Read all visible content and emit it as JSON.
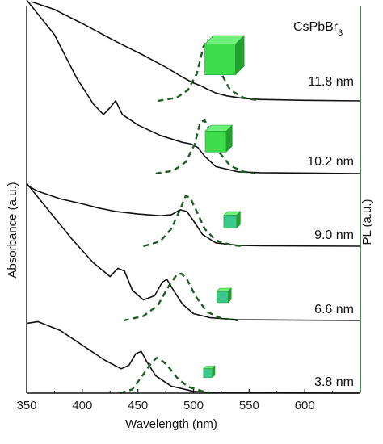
{
  "chart_data": {
    "type": "line",
    "title": "CsPbBr3",
    "title_parts": {
      "base": "CsPbBr",
      "sub": "3"
    },
    "xlabel": "Wavelength (nm)",
    "ylabel_left": "Absorbance  (a.u.)",
    "ylabel_right": "PL  (a.u.)",
    "xlim": [
      350,
      650
    ],
    "x_ticks": [
      350,
      400,
      450,
      500,
      550,
      600
    ],
    "colors": {
      "absorbance": "#111111",
      "pl": "#1e5e24",
      "right_axis": "#1e6b2a",
      "cube_sizes_large": "#3cdc4a",
      "cube_sizes_small": "#3cc88a"
    },
    "series": [
      {
        "size_label": "11.8 nm",
        "absorbance": {
          "x": [
            354,
            375,
            400,
            430,
            455,
            475,
            490,
            500,
            507,
            512,
            520,
            530,
            545,
            560,
            600,
            650
          ],
          "y": [
            1.0,
            0.92,
            0.78,
            0.6,
            0.46,
            0.34,
            0.24,
            0.18,
            0.15,
            0.12,
            0.08,
            0.05,
            0.025,
            0.015,
            0.006,
            0.0
          ]
        },
        "pl": {
          "x": [
            468,
            485,
            495,
            503,
            509,
            513,
            518,
            525,
            533,
            545,
            560
          ],
          "y": [
            0.0,
            0.03,
            0.1,
            0.25,
            0.5,
            0.56,
            0.45,
            0.25,
            0.1,
            0.03,
            0.0
          ]
        }
      },
      {
        "size_label": "10.2 nm",
        "absorbance": {
          "x": [
            350,
            375,
            395,
            410,
            419,
            425,
            430,
            436,
            450,
            470,
            490,
            498,
            504,
            510,
            520,
            540,
            560,
            650
          ],
          "y": [
            1.0,
            0.8,
            0.55,
            0.4,
            0.34,
            0.38,
            0.42,
            0.34,
            0.28,
            0.22,
            0.18,
            0.17,
            0.15,
            0.1,
            0.04,
            0.01,
            0.005,
            0.0
          ]
        },
        "pl": {
          "x": [
            466,
            482,
            493,
            501,
            506,
            510,
            516,
            523,
            533,
            545,
            555
          ],
          "y": [
            0.0,
            0.03,
            0.12,
            0.3,
            0.53,
            0.55,
            0.42,
            0.22,
            0.08,
            0.02,
            0.0
          ]
        }
      },
      {
        "size_label": "9.0 nm",
        "absorbance": {
          "x": [
            350,
            360,
            380,
            400,
            415,
            430,
            450,
            470,
            480,
            488,
            494,
            500,
            508,
            520,
            540,
            560,
            650
          ],
          "y": [
            0.72,
            0.65,
            0.56,
            0.5,
            0.45,
            0.41,
            0.38,
            0.36,
            0.37,
            0.43,
            0.41,
            0.3,
            0.14,
            0.04,
            0.01,
            0.005,
            0.0
          ]
        },
        "pl": {
          "x": [
            455,
            470,
            480,
            488,
            493,
            497,
            502,
            510,
            520,
            535,
            545
          ],
          "y": [
            0.0,
            0.05,
            0.18,
            0.38,
            0.52,
            0.5,
            0.38,
            0.18,
            0.06,
            0.01,
            0.0
          ]
        }
      },
      {
        "size_label": "6.6 nm",
        "absorbance": {
          "x": [
            350,
            370,
            390,
            410,
            425,
            432,
            438,
            445,
            455,
            465,
            472,
            476,
            482,
            490,
            500,
            515,
            540,
            650
          ],
          "y": [
            1.0,
            0.8,
            0.6,
            0.42,
            0.32,
            0.38,
            0.36,
            0.22,
            0.15,
            0.18,
            0.28,
            0.3,
            0.22,
            0.12,
            0.05,
            0.02,
            0.005,
            0.0
          ]
        },
        "pl": {
          "x": [
            437,
            455,
            468,
            478,
            485,
            489,
            494,
            502,
            512,
            525,
            540
          ],
          "y": [
            0.0,
            0.04,
            0.14,
            0.32,
            0.42,
            0.43,
            0.38,
            0.22,
            0.08,
            0.02,
            0.0
          ]
        }
      },
      {
        "size_label": "3.8 nm",
        "absorbance": {
          "x": [
            350,
            360,
            380,
            400,
            420,
            435,
            442,
            448,
            453,
            458,
            466,
            480,
            500,
            520,
            650
          ],
          "y": [
            0.8,
            0.82,
            0.72,
            0.55,
            0.38,
            0.28,
            0.32,
            0.45,
            0.48,
            0.36,
            0.2,
            0.08,
            0.02,
            0.005,
            0.0
          ]
        },
        "pl": {
          "x": [
            434,
            445,
            455,
            462,
            467,
            470,
            476,
            485,
            495,
            510,
            520
          ],
          "y": [
            0.0,
            0.06,
            0.3,
            0.48,
            0.56,
            0.54,
            0.45,
            0.25,
            0.1,
            0.02,
            0.0
          ]
        }
      }
    ],
    "cubes": [
      {
        "x": 524,
        "size": 1.0
      },
      {
        "x": 520,
        "size": 0.85
      },
      {
        "x": 533,
        "size": 0.5
      },
      {
        "x": 526,
        "size": 0.42
      },
      {
        "x": 513,
        "size": 0.32
      }
    ]
  }
}
